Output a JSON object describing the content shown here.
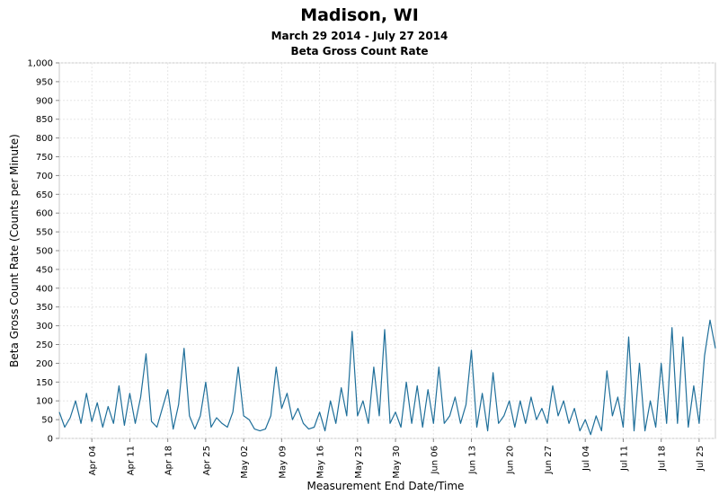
{
  "chart_data": {
    "type": "line",
    "title": "Madison, WI",
    "subtitle": "March 29 2014 - July 27 2014",
    "subtitle2": "Beta Gross Count Rate",
    "xlabel": "Measurement End Date/Time",
    "ylabel": "Beta Gross Count Rate (Counts per Minute)",
    "ylim": [
      0,
      1000
    ],
    "xlim": [
      "2014-03-29",
      "2014-07-28"
    ],
    "grid": true,
    "y_ticks": [
      0,
      50,
      100,
      150,
      200,
      250,
      300,
      350,
      400,
      450,
      500,
      550,
      600,
      650,
      700,
      750,
      800,
      850,
      900,
      950,
      1000
    ],
    "y_tick_labels": [
      "0",
      "50",
      "100",
      "150",
      "200",
      "250",
      "300",
      "350",
      "400",
      "450",
      "500",
      "550",
      "600",
      "650",
      "700",
      "750",
      "800",
      "850",
      "900",
      "950",
      "1,000"
    ],
    "x_ticks": [
      "2014-04-04",
      "2014-04-11",
      "2014-04-18",
      "2014-04-25",
      "2014-05-02",
      "2014-05-09",
      "2014-05-16",
      "2014-05-23",
      "2014-05-30",
      "2014-06-06",
      "2014-06-13",
      "2014-06-20",
      "2014-06-27",
      "2014-07-04",
      "2014-07-11",
      "2014-07-18",
      "2014-07-25"
    ],
    "x_tick_labels": [
      "Apr 04",
      "Apr 11",
      "Apr 18",
      "Apr 25",
      "May 02",
      "May 09",
      "May 16",
      "May 23",
      "May 30",
      "Jun 06",
      "Jun 13",
      "Jun 20",
      "Jun 27",
      "Jul 04",
      "Jul 11",
      "Jul 18",
      "Jul 25"
    ],
    "series": [
      {
        "color": "#1f6f9a",
        "points": [
          [
            "2014-03-29",
            70
          ],
          [
            "2014-03-30",
            30
          ],
          [
            "2014-03-31",
            55
          ],
          [
            "2014-04-01",
            100
          ],
          [
            "2014-04-02",
            40
          ],
          [
            "2014-04-03",
            120
          ],
          [
            "2014-04-04",
            45
          ],
          [
            "2014-04-05",
            95
          ],
          [
            "2014-04-06",
            30
          ],
          [
            "2014-04-07",
            85
          ],
          [
            "2014-04-08",
            40
          ],
          [
            "2014-04-09",
            140
          ],
          [
            "2014-04-10",
            35
          ],
          [
            "2014-04-11",
            120
          ],
          [
            "2014-04-12",
            40
          ],
          [
            "2014-04-13",
            110
          ],
          [
            "2014-04-14",
            225
          ],
          [
            "2014-04-15",
            45
          ],
          [
            "2014-04-16",
            30
          ],
          [
            "2014-04-17",
            80
          ],
          [
            "2014-04-18",
            130
          ],
          [
            "2014-04-19",
            25
          ],
          [
            "2014-04-20",
            90
          ],
          [
            "2014-04-21",
            240
          ],
          [
            "2014-04-22",
            60
          ],
          [
            "2014-04-23",
            25
          ],
          [
            "2014-04-24",
            60
          ],
          [
            "2014-04-25",
            150
          ],
          [
            "2014-04-26",
            30
          ],
          [
            "2014-04-27",
            55
          ],
          [
            "2014-04-28",
            40
          ],
          [
            "2014-04-29",
            30
          ],
          [
            "2014-04-30",
            70
          ],
          [
            "2014-05-01",
            190
          ],
          [
            "2014-05-02",
            60
          ],
          [
            "2014-05-03",
            50
          ],
          [
            "2014-05-04",
            25
          ],
          [
            "2014-05-05",
            20
          ],
          [
            "2014-05-06",
            25
          ],
          [
            "2014-05-07",
            60
          ],
          [
            "2014-05-08",
            190
          ],
          [
            "2014-05-09",
            80
          ],
          [
            "2014-05-10",
            120
          ],
          [
            "2014-05-11",
            50
          ],
          [
            "2014-05-12",
            80
          ],
          [
            "2014-05-13",
            40
          ],
          [
            "2014-05-14",
            25
          ],
          [
            "2014-05-15",
            30
          ],
          [
            "2014-05-16",
            70
          ],
          [
            "2014-05-17",
            20
          ],
          [
            "2014-05-18",
            100
          ],
          [
            "2014-05-19",
            40
          ],
          [
            "2014-05-20",
            135
          ],
          [
            "2014-05-21",
            60
          ],
          [
            "2014-05-22",
            285
          ],
          [
            "2014-05-23",
            60
          ],
          [
            "2014-05-24",
            100
          ],
          [
            "2014-05-25",
            40
          ],
          [
            "2014-05-26",
            190
          ],
          [
            "2014-05-27",
            60
          ],
          [
            "2014-05-28",
            290
          ],
          [
            "2014-05-29",
            40
          ],
          [
            "2014-05-30",
            70
          ],
          [
            "2014-05-31",
            30
          ],
          [
            "2014-06-01",
            150
          ],
          [
            "2014-06-02",
            40
          ],
          [
            "2014-06-03",
            140
          ],
          [
            "2014-06-04",
            30
          ],
          [
            "2014-06-05",
            130
          ],
          [
            "2014-06-06",
            40
          ],
          [
            "2014-06-07",
            190
          ],
          [
            "2014-06-08",
            40
          ],
          [
            "2014-06-09",
            60
          ],
          [
            "2014-06-10",
            110
          ],
          [
            "2014-06-11",
            40
          ],
          [
            "2014-06-12",
            90
          ],
          [
            "2014-06-13",
            235
          ],
          [
            "2014-06-14",
            30
          ],
          [
            "2014-06-15",
            120
          ],
          [
            "2014-06-16",
            20
          ],
          [
            "2014-06-17",
            175
          ],
          [
            "2014-06-18",
            40
          ],
          [
            "2014-06-19",
            60
          ],
          [
            "2014-06-20",
            100
          ],
          [
            "2014-06-21",
            30
          ],
          [
            "2014-06-22",
            100
          ],
          [
            "2014-06-23",
            40
          ],
          [
            "2014-06-24",
            110
          ],
          [
            "2014-06-25",
            50
          ],
          [
            "2014-06-26",
            80
          ],
          [
            "2014-06-27",
            40
          ],
          [
            "2014-06-28",
            140
          ],
          [
            "2014-06-29",
            60
          ],
          [
            "2014-06-30",
            100
          ],
          [
            "2014-07-01",
            40
          ],
          [
            "2014-07-02",
            80
          ],
          [
            "2014-07-03",
            20
          ],
          [
            "2014-07-04",
            50
          ],
          [
            "2014-07-05",
            10
          ],
          [
            "2014-07-06",
            60
          ],
          [
            "2014-07-07",
            20
          ],
          [
            "2014-07-08",
            180
          ],
          [
            "2014-07-09",
            60
          ],
          [
            "2014-07-10",
            110
          ],
          [
            "2014-07-11",
            30
          ],
          [
            "2014-07-12",
            270
          ],
          [
            "2014-07-13",
            20
          ],
          [
            "2014-07-14",
            200
          ],
          [
            "2014-07-15",
            20
          ],
          [
            "2014-07-16",
            100
          ],
          [
            "2014-07-17",
            30
          ],
          [
            "2014-07-18",
            200
          ],
          [
            "2014-07-19",
            40
          ],
          [
            "2014-07-20",
            295
          ],
          [
            "2014-07-21",
            40
          ],
          [
            "2014-07-22",
            270
          ],
          [
            "2014-07-23",
            30
          ],
          [
            "2014-07-24",
            140
          ],
          [
            "2014-07-25",
            40
          ],
          [
            "2014-07-26",
            220
          ],
          [
            "2014-07-27",
            315
          ],
          [
            "2014-07-28",
            240
          ]
        ]
      }
    ]
  }
}
